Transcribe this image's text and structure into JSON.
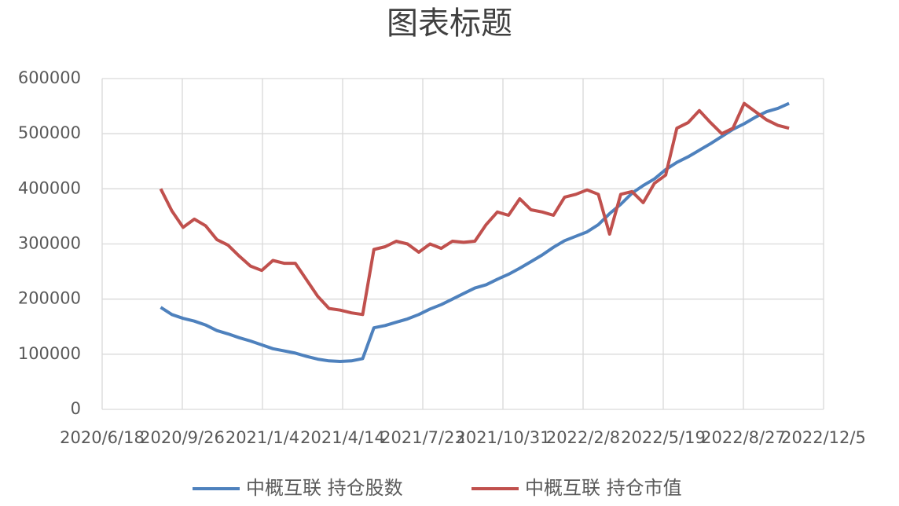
{
  "chart_data": {
    "type": "line",
    "title": "图表标题",
    "x": [
      "2020/8/30",
      "2020/9/13",
      "2020/9/27",
      "2020/10/11",
      "2020/10/25",
      "2020/11/8",
      "2020/11/22",
      "2020/12/6",
      "2020/12/20",
      "2021/1/3",
      "2021/1/17",
      "2021/1/31",
      "2021/2/14",
      "2021/2/28",
      "2021/3/14",
      "2021/3/28",
      "2021/4/11",
      "2021/4/25",
      "2021/5/9",
      "2021/5/23",
      "2021/6/6",
      "2021/6/20",
      "2021/7/4",
      "2021/7/18",
      "2021/8/1",
      "2021/8/15",
      "2021/8/29",
      "2021/9/12",
      "2021/9/26",
      "2021/10/10",
      "2021/10/24",
      "2021/11/7",
      "2021/11/21",
      "2021/12/5",
      "2021/12/19",
      "2022/1/2",
      "2022/1/16",
      "2022/1/30",
      "2022/2/13",
      "2022/2/27",
      "2022/3/13",
      "2022/3/27",
      "2022/4/10",
      "2022/4/24",
      "2022/5/8",
      "2022/5/22",
      "2022/6/5",
      "2022/6/19",
      "2022/7/3",
      "2022/7/17",
      "2022/7/31",
      "2022/8/14",
      "2022/8/28",
      "2022/9/11",
      "2022/9/25",
      "2022/10/9",
      "2022/10/23"
    ],
    "series": [
      {
        "name": "中概互联 持仓股数",
        "color": "#4e81bd",
        "values": [
          185000,
          172000,
          165000,
          160000,
          153000,
          143000,
          137000,
          130000,
          124000,
          117000,
          110000,
          106000,
          102000,
          96000,
          91000,
          88000,
          87000,
          88000,
          92000,
          148000,
          152000,
          158000,
          164000,
          172000,
          182000,
          190000,
          200000,
          210000,
          220000,
          226000,
          236000,
          245000,
          256000,
          268000,
          280000,
          294000,
          306000,
          314000,
          322000,
          335000,
          355000,
          372000,
          392000,
          406000,
          418000,
          435000,
          448000,
          458000,
          470000,
          482000,
          495000,
          508000,
          518000,
          530000,
          540000,
          546000,
          555000
        ]
      },
      {
        "name": "中概互联 持仓市值",
        "color": "#c0504d",
        "values": [
          400000,
          360000,
          330000,
          345000,
          333000,
          308000,
          298000,
          278000,
          260000,
          252000,
          270000,
          265000,
          265000,
          235000,
          205000,
          183000,
          180000,
          175000,
          172000,
          290000,
          295000,
          305000,
          300000,
          285000,
          300000,
          292000,
          305000,
          303000,
          305000,
          335000,
          358000,
          352000,
          382000,
          362000,
          358000,
          352000,
          385000,
          390000,
          398000,
          390000,
          318000,
          390000,
          395000,
          375000,
          410000,
          425000,
          510000,
          520000,
          542000,
          520000,
          500000,
          510000,
          555000,
          540000,
          525000,
          515000,
          510000
        ]
      }
    ],
    "xlim": [
      "2020/6/18",
      "2022/12/5"
    ],
    "xticks": [
      "2020/6/18",
      "2020/9/26",
      "2021/1/4",
      "2021/4/14",
      "2021/7/23",
      "2021/10/31",
      "2022/2/8",
      "2022/5/19",
      "2022/8/27",
      "2022/12/5"
    ],
    "ylim": [
      0,
      600000
    ],
    "yticks": [
      0,
      100000,
      200000,
      300000,
      400000,
      500000,
      600000
    ],
    "grid": true,
    "legend": "bottom"
  }
}
